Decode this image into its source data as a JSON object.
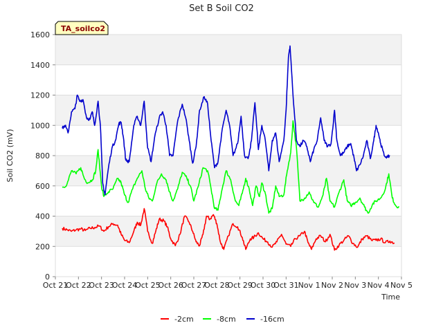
{
  "chart_data": {
    "type": "line",
    "title": "Set B Soil CO2",
    "xlabel": "Time",
    "ylabel": "Soil CO2 (mV)",
    "badge": "TA_soilco2",
    "ylim": [
      0,
      1600
    ],
    "xlim": [
      0,
      15
    ],
    "yticks": [
      0,
      200,
      400,
      600,
      800,
      1000,
      1200,
      1400,
      1600
    ],
    "xticks": [
      {
        "x": 0,
        "label": "Oct 21"
      },
      {
        "x": 1,
        "label": "Oct 22"
      },
      {
        "x": 2,
        "label": "Oct 23"
      },
      {
        "x": 3,
        "label": "Oct 24"
      },
      {
        "x": 4,
        "label": "Oct 25"
      },
      {
        "x": 5,
        "label": "Oct 26"
      },
      {
        "x": 6,
        "label": "Oct 27"
      },
      {
        "x": 7,
        "label": "Oct 28"
      },
      {
        "x": 8,
        "label": "Oct 29"
      },
      {
        "x": 9,
        "label": "Oct 30"
      },
      {
        "x": 10,
        "label": "Oct 31"
      },
      {
        "x": 11,
        "label": "Nov 1"
      },
      {
        "x": 12,
        "label": "Nov 2"
      },
      {
        "x": 13,
        "label": "Nov 3"
      },
      {
        "x": 14,
        "label": "Nov 4"
      },
      {
        "x": 15,
        "label": "Nov 5"
      }
    ],
    "series": [
      {
        "name": "-2cm",
        "color": "#ff0000",
        "points": [
          [
            0.3,
            320
          ],
          [
            0.5,
            310
          ],
          [
            0.7,
            300
          ],
          [
            0.9,
            310
          ],
          [
            1.1,
            315
          ],
          [
            1.3,
            305
          ],
          [
            1.5,
            320
          ],
          [
            1.7,
            325
          ],
          [
            1.9,
            335
          ],
          [
            2.1,
            300
          ],
          [
            2.3,
            330
          ],
          [
            2.5,
            350
          ],
          [
            2.7,
            340
          ],
          [
            2.85,
            280
          ],
          [
            3.0,
            240
          ],
          [
            3.2,
            225
          ],
          [
            3.4,
            300
          ],
          [
            3.55,
            360
          ],
          [
            3.7,
            340
          ],
          [
            3.85,
            450
          ],
          [
            4.0,
            300
          ],
          [
            4.2,
            220
          ],
          [
            4.35,
            300
          ],
          [
            4.5,
            380
          ],
          [
            4.7,
            370
          ],
          [
            4.85,
            330
          ],
          [
            5.0,
            250
          ],
          [
            5.2,
            205
          ],
          [
            5.4,
            280
          ],
          [
            5.6,
            400
          ],
          [
            5.8,
            360
          ],
          [
            5.95,
            300
          ],
          [
            6.1,
            230
          ],
          [
            6.25,
            205
          ],
          [
            6.4,
            280
          ],
          [
            6.55,
            400
          ],
          [
            6.7,
            380
          ],
          [
            6.85,
            410
          ],
          [
            7.0,
            350
          ],
          [
            7.15,
            230
          ],
          [
            7.3,
            180
          ],
          [
            7.5,
            270
          ],
          [
            7.7,
            350
          ],
          [
            7.9,
            330
          ],
          [
            8.1,
            260
          ],
          [
            8.25,
            180
          ],
          [
            8.45,
            250
          ],
          [
            8.6,
            260
          ],
          [
            8.8,
            290
          ],
          [
            9.0,
            250
          ],
          [
            9.2,
            230
          ],
          [
            9.4,
            195
          ],
          [
            9.6,
            230
          ],
          [
            9.8,
            280
          ],
          [
            10.0,
            215
          ],
          [
            10.2,
            200
          ],
          [
            10.4,
            250
          ],
          [
            10.6,
            270
          ],
          [
            10.8,
            300
          ],
          [
            10.95,
            225
          ],
          [
            11.1,
            180
          ],
          [
            11.3,
            250
          ],
          [
            11.5,
            270
          ],
          [
            11.7,
            230
          ],
          [
            11.9,
            280
          ],
          [
            12.1,
            175
          ],
          [
            12.3,
            210
          ],
          [
            12.5,
            240
          ],
          [
            12.7,
            270
          ],
          [
            12.9,
            220
          ],
          [
            13.1,
            195
          ],
          [
            13.3,
            250
          ],
          [
            13.5,
            270
          ],
          [
            13.7,
            240
          ],
          [
            13.9,
            240
          ],
          [
            14.1,
            250
          ],
          [
            14.3,
            225
          ],
          [
            14.5,
            235
          ],
          [
            14.7,
            222
          ]
        ]
      },
      {
        "name": "-8cm",
        "color": "#00ff00",
        "points": [
          [
            0.3,
            590
          ],
          [
            0.5,
            610
          ],
          [
            0.7,
            700
          ],
          [
            0.9,
            680
          ],
          [
            1.1,
            720
          ],
          [
            1.25,
            650
          ],
          [
            1.4,
            620
          ],
          [
            1.6,
            640
          ],
          [
            1.75,
            700
          ],
          [
            1.85,
            840
          ],
          [
            2.0,
            600
          ],
          [
            2.1,
            530
          ],
          [
            2.3,
            560
          ],
          [
            2.5,
            580
          ],
          [
            2.7,
            650
          ],
          [
            2.85,
            620
          ],
          [
            3.0,
            540
          ],
          [
            3.15,
            490
          ],
          [
            3.35,
            580
          ],
          [
            3.55,
            650
          ],
          [
            3.75,
            700
          ],
          [
            3.9,
            580
          ],
          [
            4.05,
            520
          ],
          [
            4.2,
            500
          ],
          [
            4.4,
            620
          ],
          [
            4.6,
            680
          ],
          [
            4.8,
            640
          ],
          [
            4.95,
            560
          ],
          [
            5.1,
            500
          ],
          [
            5.3,
            580
          ],
          [
            5.5,
            690
          ],
          [
            5.7,
            650
          ],
          [
            5.85,
            600
          ],
          [
            6.0,
            500
          ],
          [
            6.2,
            600
          ],
          [
            6.4,
            720
          ],
          [
            6.6,
            700
          ],
          [
            6.75,
            580
          ],
          [
            6.9,
            450
          ],
          [
            7.05,
            440
          ],
          [
            7.2,
            560
          ],
          [
            7.4,
            700
          ],
          [
            7.6,
            640
          ],
          [
            7.8,
            500
          ],
          [
            7.95,
            470
          ],
          [
            8.1,
            550
          ],
          [
            8.25,
            650
          ],
          [
            8.4,
            580
          ],
          [
            8.55,
            470
          ],
          [
            8.7,
            600
          ],
          [
            8.85,
            530
          ],
          [
            8.95,
            620
          ],
          [
            9.1,
            550
          ],
          [
            9.25,
            420
          ],
          [
            9.4,
            450
          ],
          [
            9.55,
            600
          ],
          [
            9.7,
            530
          ],
          [
            9.9,
            540
          ],
          [
            10.05,
            700
          ],
          [
            10.2,
            820
          ],
          [
            10.3,
            1030
          ],
          [
            10.45,
            850
          ],
          [
            10.6,
            500
          ],
          [
            10.8,
            520
          ],
          [
            11.0,
            560
          ],
          [
            11.2,
            490
          ],
          [
            11.4,
            460
          ],
          [
            11.6,
            540
          ],
          [
            11.75,
            650
          ],
          [
            11.9,
            500
          ],
          [
            12.1,
            460
          ],
          [
            12.3,
            560
          ],
          [
            12.5,
            640
          ],
          [
            12.65,
            500
          ],
          [
            12.8,
            470
          ],
          [
            13.0,
            490
          ],
          [
            13.2,
            520
          ],
          [
            13.4,
            460
          ],
          [
            13.55,
            420
          ],
          [
            13.75,
            480
          ],
          [
            13.9,
            500
          ],
          [
            14.1,
            520
          ],
          [
            14.3,
            580
          ],
          [
            14.45,
            680
          ],
          [
            14.6,
            520
          ],
          [
            14.75,
            470
          ],
          [
            14.9,
            460
          ]
        ]
      },
      {
        "name": "-16cm",
        "color": "#0000cc",
        "points": [
          [
            0.3,
            980
          ],
          [
            0.42,
            1000
          ],
          [
            0.55,
            950
          ],
          [
            0.7,
            1090
          ],
          [
            0.85,
            1110
          ],
          [
            0.95,
            1200
          ],
          [
            1.05,
            1160
          ],
          [
            1.2,
            1170
          ],
          [
            1.35,
            1050
          ],
          [
            1.5,
            1040
          ],
          [
            1.6,
            1090
          ],
          [
            1.7,
            1000
          ],
          [
            1.85,
            1160
          ],
          [
            1.95,
            1000
          ],
          [
            2.05,
            620
          ],
          [
            2.15,
            540
          ],
          [
            2.3,
            720
          ],
          [
            2.45,
            850
          ],
          [
            2.6,
            900
          ],
          [
            2.75,
            1010
          ],
          [
            2.85,
            1020
          ],
          [
            2.95,
            920
          ],
          [
            3.05,
            770
          ],
          [
            3.2,
            760
          ],
          [
            3.4,
            1000
          ],
          [
            3.55,
            1060
          ],
          [
            3.7,
            1000
          ],
          [
            3.85,
            1160
          ],
          [
            4.0,
            850
          ],
          [
            4.15,
            760
          ],
          [
            4.3,
            920
          ],
          [
            4.5,
            1050
          ],
          [
            4.65,
            1090
          ],
          [
            4.8,
            1000
          ],
          [
            4.95,
            800
          ],
          [
            5.1,
            800
          ],
          [
            5.3,
            1030
          ],
          [
            5.5,
            1140
          ],
          [
            5.65,
            1050
          ],
          [
            5.8,
            900
          ],
          [
            5.95,
            750
          ],
          [
            6.1,
            860
          ],
          [
            6.25,
            1100
          ],
          [
            6.45,
            1190
          ],
          [
            6.6,
            1140
          ],
          [
            6.75,
            900
          ],
          [
            6.9,
            720
          ],
          [
            7.05,
            760
          ],
          [
            7.2,
            940
          ],
          [
            7.4,
            1100
          ],
          [
            7.55,
            1000
          ],
          [
            7.7,
            800
          ],
          [
            7.9,
            880
          ],
          [
            8.05,
            1060
          ],
          [
            8.2,
            800
          ],
          [
            8.35,
            780
          ],
          [
            8.5,
            900
          ],
          [
            8.65,
            1150
          ],
          [
            8.8,
            840
          ],
          [
            8.95,
            1000
          ],
          [
            9.1,
            900
          ],
          [
            9.25,
            700
          ],
          [
            9.4,
            900
          ],
          [
            9.55,
            950
          ],
          [
            9.7,
            760
          ],
          [
            9.9,
            900
          ],
          [
            10.0,
            1100
          ],
          [
            10.1,
            1450
          ],
          [
            10.17,
            1525
          ],
          [
            10.3,
            1200
          ],
          [
            10.45,
            900
          ],
          [
            10.6,
            860
          ],
          [
            10.75,
            900
          ],
          [
            10.9,
            860
          ],
          [
            11.05,
            760
          ],
          [
            11.2,
            840
          ],
          [
            11.35,
            900
          ],
          [
            11.5,
            1050
          ],
          [
            11.65,
            900
          ],
          [
            11.8,
            860
          ],
          [
            11.95,
            880
          ],
          [
            12.1,
            1100
          ],
          [
            12.2,
            900
          ],
          [
            12.35,
            800
          ],
          [
            12.5,
            820
          ],
          [
            12.65,
            860
          ],
          [
            12.8,
            880
          ],
          [
            12.95,
            780
          ],
          [
            13.05,
            700
          ],
          [
            13.2,
            740
          ],
          [
            13.35,
            800
          ],
          [
            13.5,
            900
          ],
          [
            13.65,
            780
          ],
          [
            13.8,
            900
          ],
          [
            13.9,
            1000
          ],
          [
            14.0,
            950
          ],
          [
            14.1,
            880
          ],
          [
            14.25,
            800
          ],
          [
            14.4,
            790
          ],
          [
            14.5,
            800
          ]
        ]
      }
    ]
  }
}
